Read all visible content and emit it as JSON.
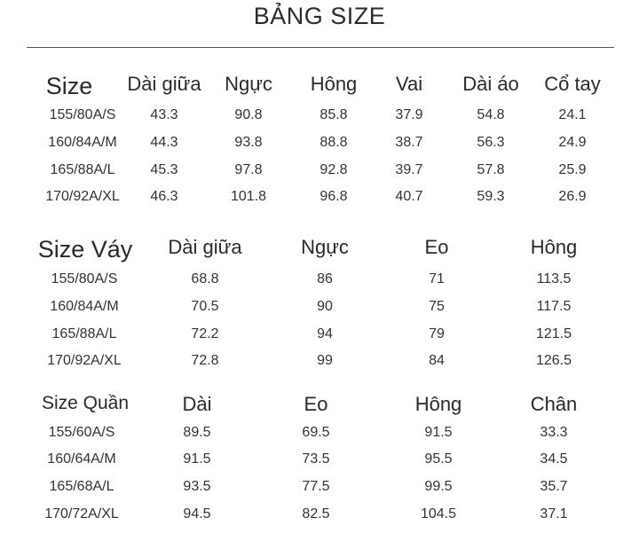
{
  "title": "BẢNG SIZE",
  "table1": {
    "headers": [
      "Size",
      "Dài giữa",
      "Ngực",
      "Hông",
      "Vai",
      "Dài áo",
      "Cổ tay"
    ],
    "rows": [
      [
        "155/80A/S",
        "43.3",
        "90.8",
        "85.8",
        "37.9",
        "54.8",
        "24.1"
      ],
      [
        "160/84A/M",
        "44.3",
        "93.8",
        "88.8",
        "38.7",
        "56.3",
        "24.9"
      ],
      [
        "165/88A/L",
        "45.3",
        "97.8",
        "92.8",
        "39.7",
        "57.8",
        "25.9"
      ],
      [
        "170/92A/XL",
        "46.3",
        "101.8",
        "96.8",
        "40.7",
        "59.3",
        "26.9"
      ]
    ]
  },
  "table2": {
    "headers": [
      "Size Váy",
      "Dài giữa",
      "Ngực",
      "Eo",
      "Hông"
    ],
    "rows": [
      [
        "155/80A/S",
        "68.8",
        "86",
        "71",
        "113.5"
      ],
      [
        "160/84A/M",
        "70.5",
        "90",
        "75",
        "117.5"
      ],
      [
        "165/88A/L",
        "72.2",
        "94",
        "79",
        "121.5"
      ],
      [
        "170/92A/XL",
        "72.8",
        "99",
        "84",
        "126.5"
      ]
    ]
  },
  "table3": {
    "headers": [
      "Size Quần",
      "Dài",
      "Eo",
      "Hông",
      "Chân"
    ],
    "rows": [
      [
        "155/60A/S",
        "89.5",
        "69.5",
        "91.5",
        "33.3"
      ],
      [
        "160/64A/M",
        "91.5",
        "73.5",
        "95.5",
        "34.5"
      ],
      [
        "165/68A/L",
        "93.5",
        "77.5",
        "99.5",
        "35.7"
      ],
      [
        "170/72A/XL",
        "94.5",
        "82.5",
        "104.5",
        "37.1"
      ]
    ]
  }
}
